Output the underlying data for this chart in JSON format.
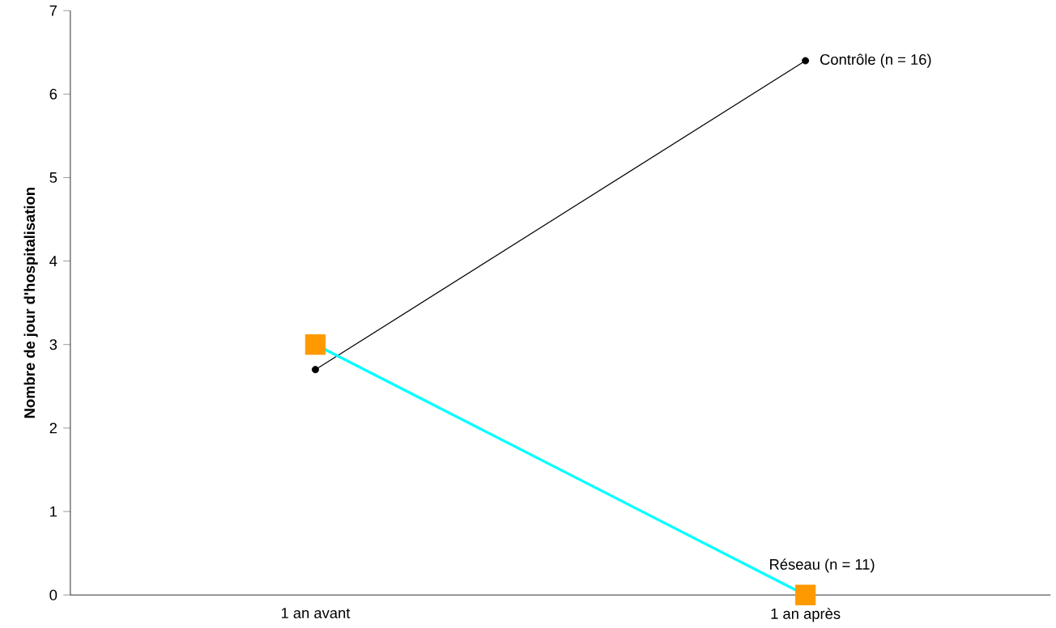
{
  "chart_data": {
    "type": "line",
    "ylabel": "Nombre de jour d'hospitalisation",
    "categories": [
      "1 an avant",
      "1 an après"
    ],
    "series": [
      {
        "name": "Contrôle (n = 16)",
        "color": "#000000",
        "values": [
          2.7,
          6.4
        ],
        "marker": "circle"
      },
      {
        "name": "Réseau (n = 11)",
        "color": "#00ffff",
        "colors": [
          "#ff9900",
          "#ff9900"
        ],
        "values": [
          3.0,
          0.0
        ],
        "marker": "square"
      }
    ],
    "ylim": [
      0,
      7
    ],
    "yticks": [
      0,
      1,
      2,
      3,
      4,
      5,
      6,
      7
    ],
    "grid": false
  }
}
